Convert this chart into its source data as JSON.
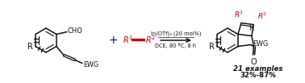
{
  "bg_color": "#ffffff",
  "black": "#111111",
  "red": "#cc0000",
  "figsize": [
    3.78,
    1.03
  ],
  "dpi": 100,
  "arrow_top": "In(OTf)₃ (20 mol%)",
  "arrow_bot": "DCE, 80 ºC, 8 h",
  "examples_text": "21 examples",
  "yield_text": "32%-87%"
}
